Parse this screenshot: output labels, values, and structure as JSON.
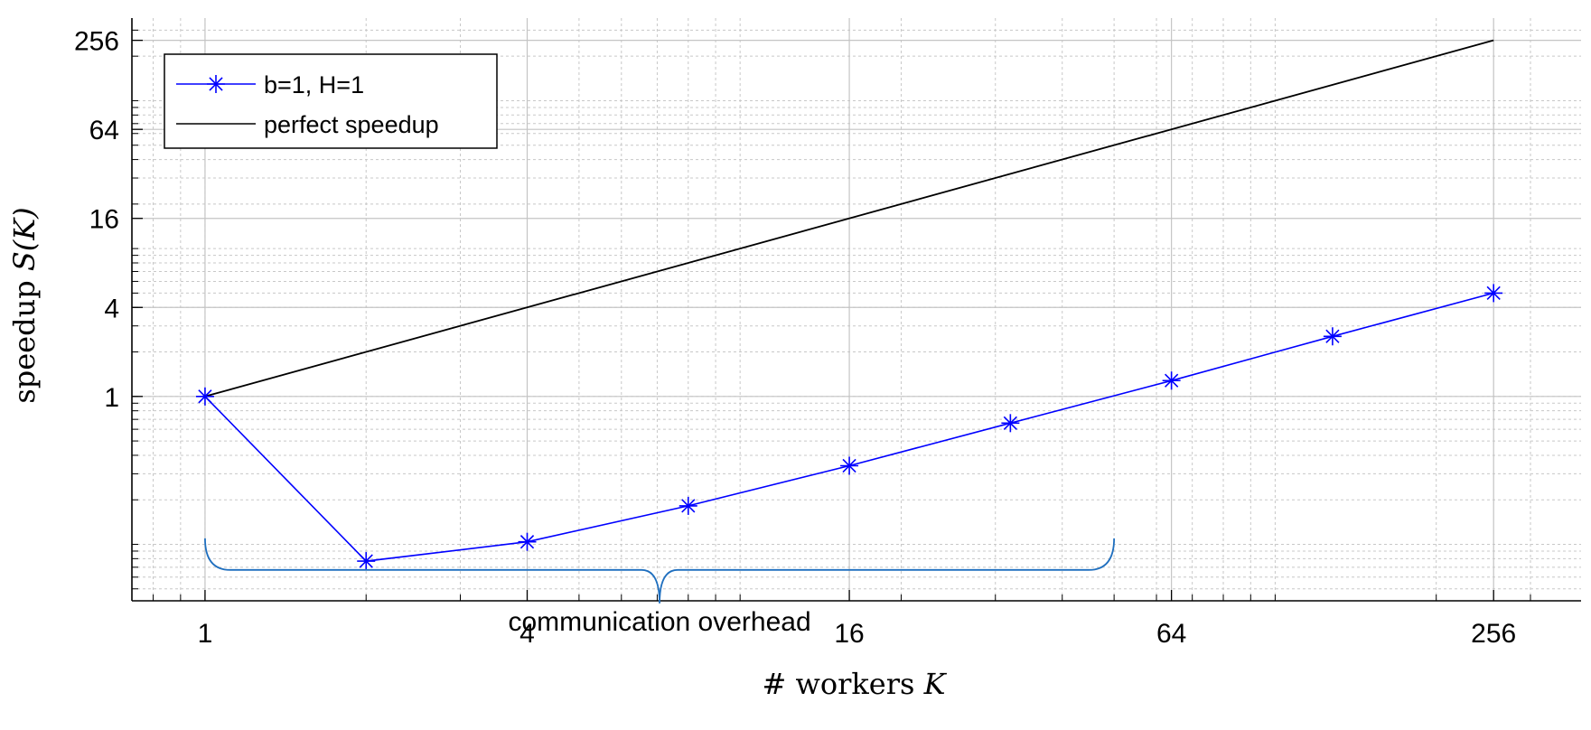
{
  "chart_data": {
    "type": "line",
    "title": "",
    "xlabel_prefix": "# workers ",
    "xlabel_var": "K",
    "ylabel_prefix": "speedup ",
    "ylabel_var": "S(K)",
    "x_scale": "log2",
    "y_scale": "log2",
    "xlim": [
      0.73,
      373
    ],
    "ylim": [
      0.0415,
      362
    ],
    "x_ticks": [
      1,
      4,
      16,
      64,
      256
    ],
    "x_tick_labels": [
      "1",
      "4",
      "16",
      "64",
      "256"
    ],
    "y_ticks": [
      1,
      4,
      16,
      64,
      256
    ],
    "y_tick_labels": [
      "1",
      "4",
      "16",
      "64",
      "256"
    ],
    "grid": true,
    "minor_grid": true,
    "legend_position": "top-left",
    "series": [
      {
        "name": "b=1, H=1",
        "color": "#0000ff",
        "marker": "asterisk",
        "x": [
          1,
          2,
          4,
          8,
          16,
          32,
          64,
          128,
          256
        ],
        "y": [
          1.0,
          0.077,
          0.104,
          0.182,
          0.34,
          0.66,
          1.28,
          2.55,
          5.0
        ]
      },
      {
        "name": "perfect speedup",
        "color": "#000000",
        "marker": "none",
        "x": [
          1,
          256
        ],
        "y": [
          1,
          256
        ]
      }
    ],
    "annotations": [
      {
        "text": "communication overhead",
        "type": "brace",
        "x_from": 1,
        "x_to": 50,
        "y": 0.07,
        "color": "#1f6fbf"
      }
    ]
  }
}
